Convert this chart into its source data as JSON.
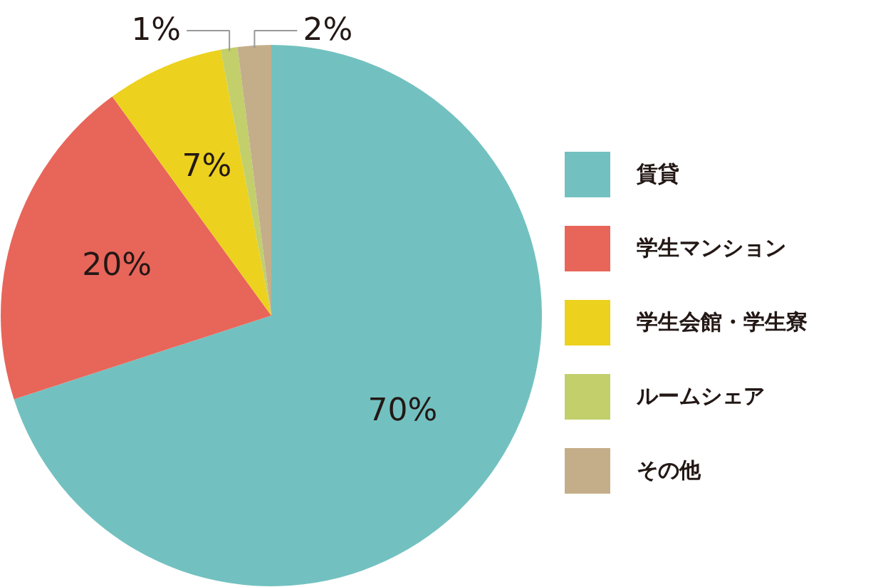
{
  "chart_data": {
    "type": "pie",
    "categories": [
      "賃貸",
      "学生マンション",
      "学生会館・学生寮",
      "ルームシェア",
      "その他"
    ],
    "values": [
      70,
      20,
      7,
      1,
      2
    ],
    "colors": [
      "#72c1c0",
      "#e8655a",
      "#ecd11e",
      "#c2cf6b",
      "#c4ae8a"
    ],
    "value_labels": [
      "70%",
      "20%",
      "7%",
      "1%",
      "2%"
    ],
    "legend": "right"
  }
}
